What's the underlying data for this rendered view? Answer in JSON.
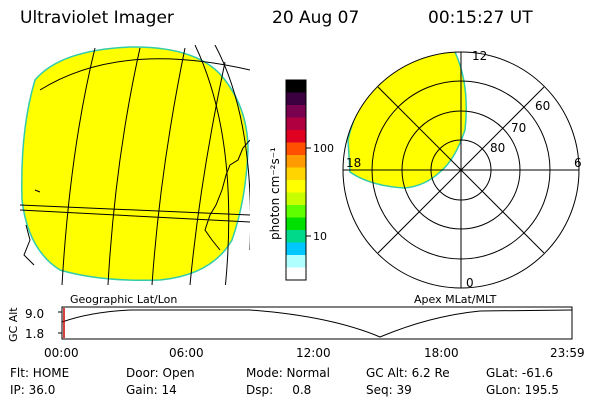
{
  "header": {
    "title": "Ultraviolet Imager",
    "date": "20 Aug 07",
    "time": "00:15:27 UT"
  },
  "colorbar": {
    "unit_label": "photon cm⁻²s⁻¹",
    "ticks": [
      "100",
      "10"
    ],
    "colors": [
      "#000000",
      "#3a003f",
      "#7a0050",
      "#b00040",
      "#e00020",
      "#ff5000",
      "#ff9a00",
      "#ffd400",
      "#ffff00",
      "#c8ff00",
      "#60ff00",
      "#00e000",
      "#00d88a",
      "#00c8ff",
      "#b0ffff",
      "#ffffff"
    ]
  },
  "left_panel": {
    "caption": "Geographic Lat/Lon",
    "fill_color": "#ffff00"
  },
  "right_panel": {
    "caption": "Apex MLat/MLT",
    "mlt_labels": {
      "top": "12",
      "left": "18",
      "right": "6",
      "bottom": "0"
    },
    "lat_labels": [
      "60",
      "70",
      "80"
    ],
    "fill_color": "#ffff00"
  },
  "altitude_plot": {
    "ylabel": "GC Alt",
    "yticks": [
      "9.0",
      "1.8"
    ],
    "xticks": [
      "00:00",
      "06:00",
      "12:00",
      "18:00",
      "23:59"
    ],
    "minimum_time": "15:00",
    "marker_time": "00:15"
  },
  "status": {
    "flt": "Flt: HOME",
    "ip": "IP: 36.0",
    "door": "Door: Open",
    "gain": "Gain: 14",
    "mode": "Mode: Normal",
    "dsp": "Dsp:     0.8",
    "gc_alt": "GC Alt: 6.2 Re",
    "seq": "Seq: 39",
    "glat": "GLat: -61.6",
    "glon": "GLon: 195.5"
  }
}
